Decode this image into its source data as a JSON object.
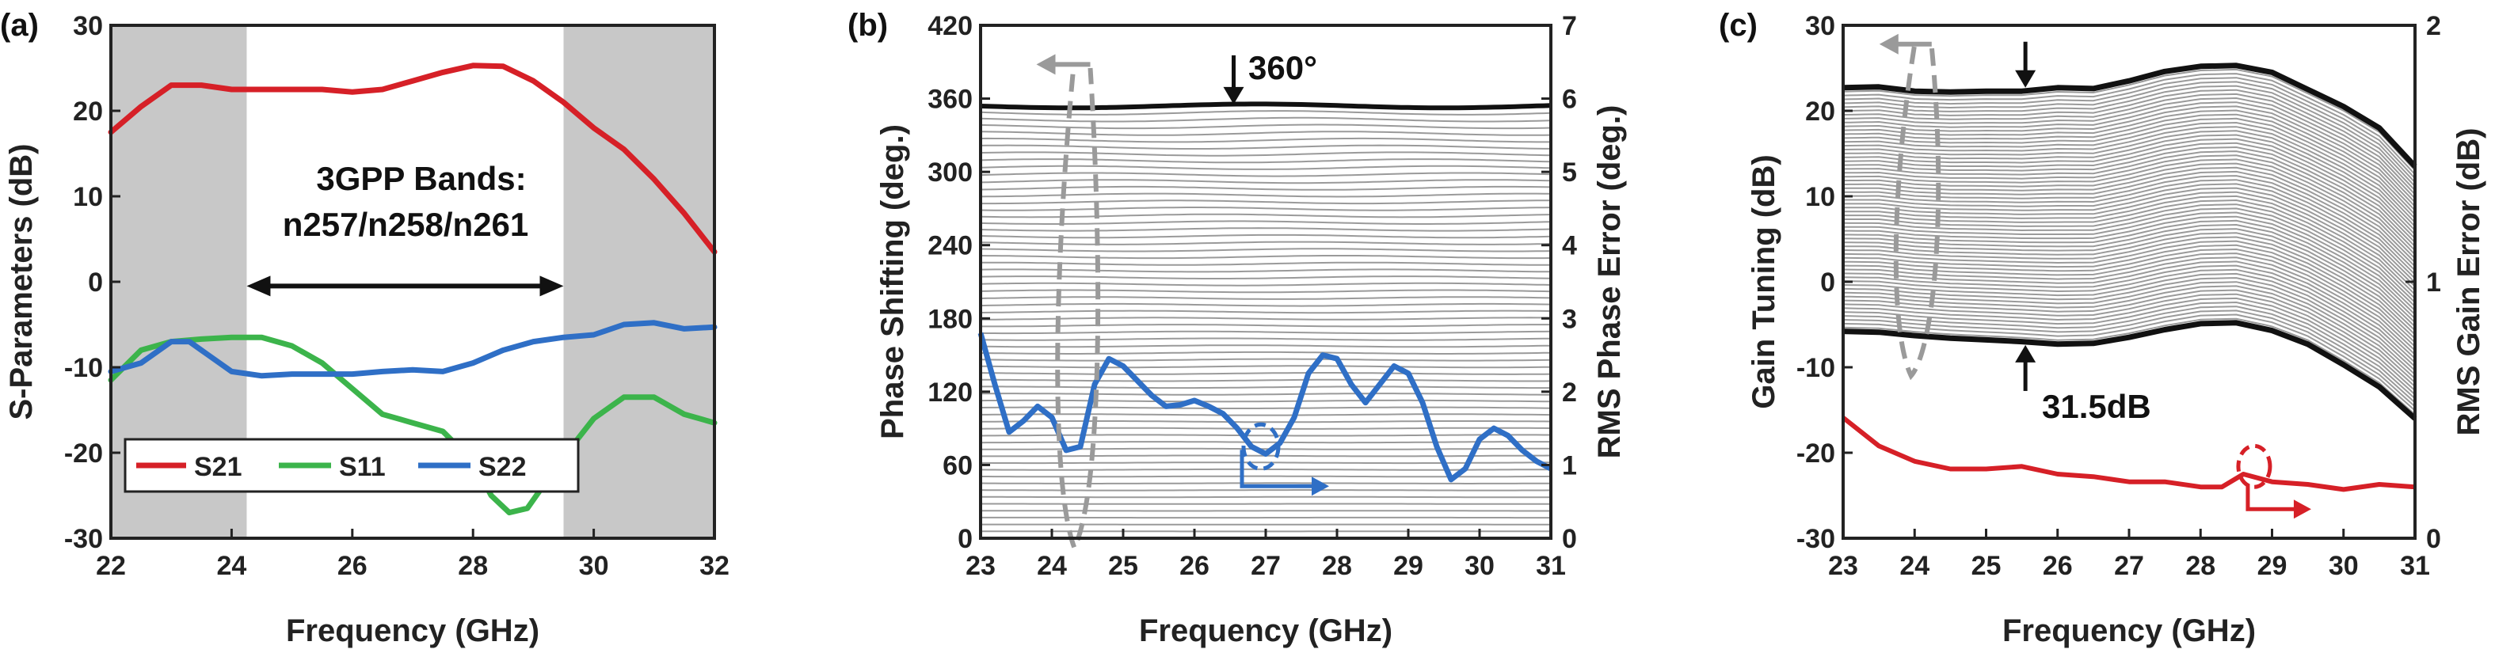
{
  "chart_data": [
    {
      "panel_label": "(a)",
      "type": "line",
      "xlabel": "Frequency (GHz)",
      "ylabel": "S-Parameters (dB)",
      "xlim": [
        22,
        32
      ],
      "ylim": [
        -30,
        30
      ],
      "xticks": [
        22,
        24,
        26,
        28,
        30,
        32
      ],
      "yticks": [
        -30,
        -20,
        -10,
        0,
        10,
        20,
        30
      ],
      "grid": false,
      "legend_position": "bottom",
      "shaded_x_ranges": [
        [
          22,
          24.25
        ],
        [
          29.5,
          32
        ]
      ],
      "annotation": {
        "text_line1": "3GPP Bands:",
        "text_line2": "n257/n258/n261",
        "arrow_x": [
          24.25,
          29.5
        ],
        "arrow_y": -0.5
      },
      "series": [
        {
          "name": "S21",
          "color": "#d62027",
          "x": [
            22,
            22.5,
            23,
            23.5,
            24,
            24.5,
            25,
            25.5,
            26,
            26.5,
            27,
            27.5,
            28,
            28.5,
            29,
            29.5,
            30,
            30.5,
            31,
            31.5,
            32
          ],
          "y": [
            17.5,
            20.5,
            23.0,
            23.0,
            22.5,
            22.5,
            22.5,
            22.5,
            22.2,
            22.5,
            23.5,
            24.5,
            25.3,
            25.2,
            23.5,
            21.0,
            18.0,
            15.5,
            12.0,
            8.0,
            3.5
          ]
        },
        {
          "name": "S11",
          "color": "#3cb44b",
          "x": [
            22,
            22.5,
            23,
            23.5,
            24,
            24.5,
            25,
            25.5,
            26,
            26.5,
            27,
            27.5,
            28,
            28.3,
            28.6,
            28.9,
            29.2,
            29.5,
            30,
            30.5,
            31,
            31.5,
            32
          ],
          "y": [
            -11.5,
            -8.0,
            -7.0,
            -6.7,
            -6.5,
            -6.5,
            -7.5,
            -9.5,
            -12.5,
            -15.5,
            -16.5,
            -17.5,
            -21.0,
            -25.0,
            -27.0,
            -26.5,
            -23.5,
            -20.5,
            -16.0,
            -13.5,
            -13.5,
            -15.5,
            -16.5
          ]
        },
        {
          "name": "S22",
          "color": "#2f6fc6",
          "x": [
            22,
            22.5,
            23,
            23.3,
            23.6,
            24,
            24.5,
            25,
            25.5,
            26,
            26.5,
            27,
            27.5,
            28,
            28.5,
            29,
            29.5,
            30,
            30.5,
            31,
            31.5,
            32
          ],
          "y": [
            -10.5,
            -9.5,
            -7.0,
            -7.0,
            -8.5,
            -10.5,
            -11.0,
            -10.8,
            -10.8,
            -10.8,
            -10.5,
            -10.3,
            -10.5,
            -9.5,
            -8.0,
            -7.0,
            -6.5,
            -6.2,
            -5.0,
            -4.8,
            -5.5,
            -5.3
          ]
        }
      ]
    },
    {
      "panel_label": "(b)",
      "type": "line",
      "xlabel": "Frequency (GHz)",
      "ylabel": "Phase Shifting (deg.)",
      "y2label": "RMS Phase Error (deg.)",
      "xlim": [
        23,
        31
      ],
      "ylim": [
        0,
        420
      ],
      "y2lim": [
        0,
        7
      ],
      "xticks": [
        23,
        24,
        25,
        26,
        27,
        28,
        29,
        30,
        31
      ],
      "yticks": [
        0,
        60,
        120,
        180,
        240,
        300,
        360,
        420
      ],
      "y2ticks": [
        0,
        1,
        2,
        3,
        4,
        5,
        6,
        7
      ],
      "grid": false,
      "state_curves": {
        "count": 64,
        "min": 0,
        "max": 354,
        "color": "#9a9a9a"
      },
      "top_curve": {
        "y": 354,
        "label": "360°"
      },
      "rms_error": {
        "color": "#2f6fc6",
        "axis": "right",
        "x": [
          23,
          23.2,
          23.4,
          23.6,
          23.8,
          24,
          24.2,
          24.4,
          24.6,
          24.8,
          25,
          25.2,
          25.4,
          25.6,
          25.8,
          26,
          26.2,
          26.4,
          26.6,
          26.8,
          27,
          27.2,
          27.4,
          27.6,
          27.8,
          28,
          28.2,
          28.4,
          28.6,
          28.8,
          29,
          29.2,
          29.4,
          29.6,
          29.8,
          30,
          30.2,
          30.4,
          30.6,
          30.8,
          31
        ],
        "y": [
          2.8,
          2.1,
          1.45,
          1.6,
          1.8,
          1.65,
          1.2,
          1.25,
          2.1,
          2.45,
          2.35,
          2.15,
          1.95,
          1.8,
          1.82,
          1.88,
          1.8,
          1.7,
          1.5,
          1.25,
          1.15,
          1.3,
          1.65,
          2.25,
          2.5,
          2.45,
          2.1,
          1.85,
          2.1,
          2.35,
          2.25,
          1.85,
          1.25,
          0.8,
          0.95,
          1.35,
          1.5,
          1.4,
          1.2,
          1.05,
          0.95
        ]
      }
    },
    {
      "panel_label": "(c)",
      "type": "line",
      "xlabel": "Frequency (GHz)",
      "ylabel": "Gain Tuning (dB)",
      "y2label": "RMS Gain Error (dB)",
      "xlim": [
        23,
        31
      ],
      "ylim": [
        -30,
        30
      ],
      "y2lim": [
        0,
        2
      ],
      "xticks": [
        23,
        24,
        25,
        26,
        27,
        28,
        29,
        30,
        31
      ],
      "yticks": [
        -30,
        -20,
        -10,
        0,
        10,
        20,
        30
      ],
      "y2ticks": [
        0,
        1,
        2
      ],
      "grid": false,
      "gain_upper": {
        "x": [
          23,
          23.5,
          24,
          24.5,
          25,
          25.5,
          26,
          26.5,
          27,
          27.5,
          28,
          28.5,
          29,
          29.5,
          30,
          30.5,
          31
        ],
        "y": [
          22.7,
          22.8,
          22.3,
          22.2,
          22.3,
          22.3,
          22.7,
          22.6,
          23.5,
          24.6,
          25.2,
          25.3,
          24.5,
          22.5,
          20.5,
          18.0,
          13.5
        ]
      },
      "gain_lower": {
        "x": [
          23,
          23.5,
          24,
          24.5,
          25,
          25.5,
          26,
          26.5,
          27,
          27.5,
          28,
          28.5,
          29,
          29.5,
          30,
          30.5,
          31
        ],
        "y": [
          -5.8,
          -5.9,
          -6.3,
          -6.6,
          -6.8,
          -7.0,
          -7.3,
          -7.2,
          -6.5,
          -5.6,
          -4.9,
          -4.8,
          -5.7,
          -7.3,
          -9.7,
          -12.3,
          -16.0
        ]
      },
      "state_curves": {
        "count": 64,
        "color": "#9a9a9a"
      },
      "range_label": "31.5dB",
      "rms_error": {
        "color": "#d62027",
        "axis": "right",
        "x": [
          23,
          23.5,
          24,
          24.5,
          25,
          25.5,
          26,
          26.5,
          27,
          27.5,
          28,
          28.3,
          28.6,
          29,
          29.5,
          30,
          30.5,
          31
        ],
        "y": [
          0.47,
          0.36,
          0.3,
          0.27,
          0.27,
          0.28,
          0.25,
          0.24,
          0.22,
          0.22,
          0.2,
          0.2,
          0.25,
          0.22,
          0.21,
          0.19,
          0.21,
          0.2
        ]
      }
    }
  ]
}
